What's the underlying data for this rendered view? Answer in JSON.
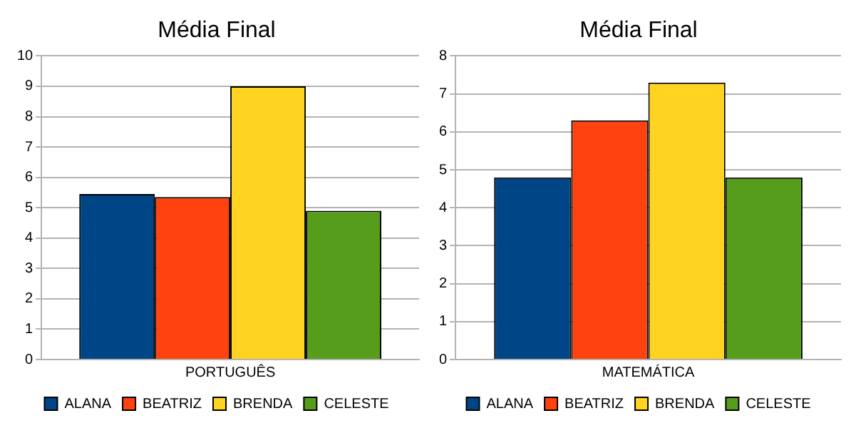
{
  "chart_data": [
    {
      "type": "bar",
      "title": "Média Final",
      "categories": [
        "PORTUGUÊS"
      ],
      "series": [
        {
          "name": "ALANA",
          "color": "#004586",
          "values": [
            5.45
          ]
        },
        {
          "name": "BEATRIZ",
          "color": "#ff420e",
          "values": [
            5.35
          ]
        },
        {
          "name": "BRENDA",
          "color": "#ffd320",
          "values": [
            9
          ]
        },
        {
          "name": "CELESTE",
          "color": "#579d1c",
          "values": [
            4.9
          ]
        }
      ],
      "ylim": [
        0,
        10
      ],
      "yticks": [
        0,
        1,
        2,
        3,
        4,
        5,
        6,
        7,
        8,
        9,
        10
      ],
      "grid": "y",
      "legend": "bottom"
    },
    {
      "type": "bar",
      "title": "Média Final",
      "categories": [
        "MATEMÁTICA"
      ],
      "series": [
        {
          "name": "ALANA",
          "color": "#004586",
          "values": [
            4.8
          ]
        },
        {
          "name": "BEATRIZ",
          "color": "#ff420e",
          "values": [
            6.3
          ]
        },
        {
          "name": "BRENDA",
          "color": "#ffd320",
          "values": [
            7.3
          ]
        },
        {
          "name": "CELESTE",
          "color": "#579d1c",
          "values": [
            4.8
          ]
        }
      ],
      "ylim": [
        0,
        8
      ],
      "yticks": [
        0,
        1,
        2,
        3,
        4,
        5,
        6,
        7,
        8
      ],
      "grid": "y",
      "legend": "bottom"
    }
  ]
}
